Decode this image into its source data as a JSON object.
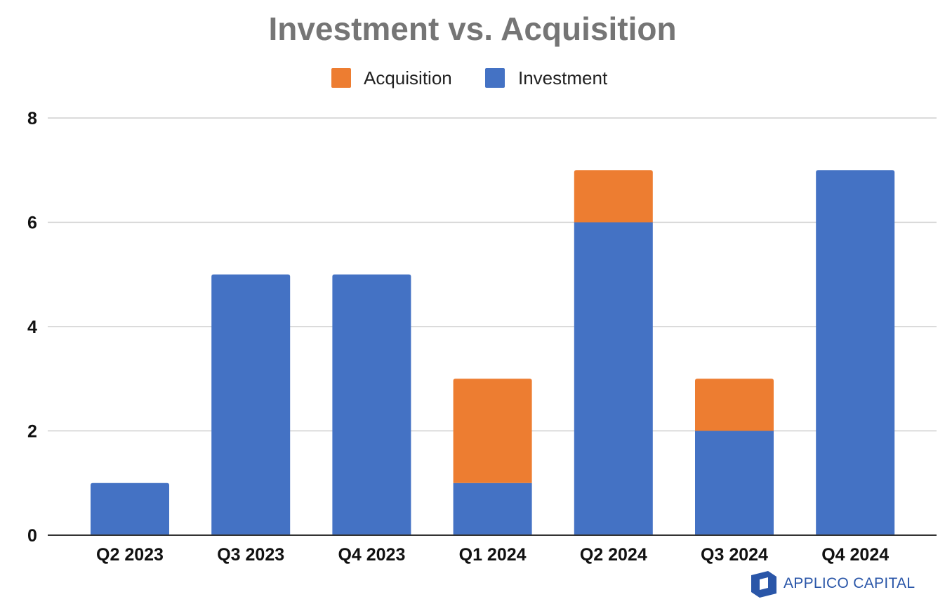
{
  "chart_data": {
    "type": "bar",
    "stacked": true,
    "title": "Investment vs. Acquisition",
    "categories": [
      "Q2 2023",
      "Q3 2023",
      "Q4 2023",
      "Q1 2024",
      "Q2 2024",
      "Q3 2024",
      "Q4 2024"
    ],
    "series": [
      {
        "name": "Investment",
        "color": "#4472c4",
        "values": [
          1,
          5,
          5,
          1,
          6,
          2,
          7
        ]
      },
      {
        "name": "Acquisition",
        "color": "#ed7d31",
        "values": [
          0,
          0,
          0,
          2,
          1,
          1,
          0
        ]
      }
    ],
    "legend": {
      "position": "top",
      "order": [
        "Acquisition",
        "Investment"
      ]
    },
    "xlabel": "",
    "ylabel": "",
    "ylim": [
      0,
      8
    ],
    "yticks": [
      0,
      2,
      4,
      6,
      8
    ],
    "grid": true
  },
  "brand": {
    "name": "APPLICO CAPITAL",
    "color": "#2a56a8",
    "logo_icon": "applico-logo-icon"
  }
}
